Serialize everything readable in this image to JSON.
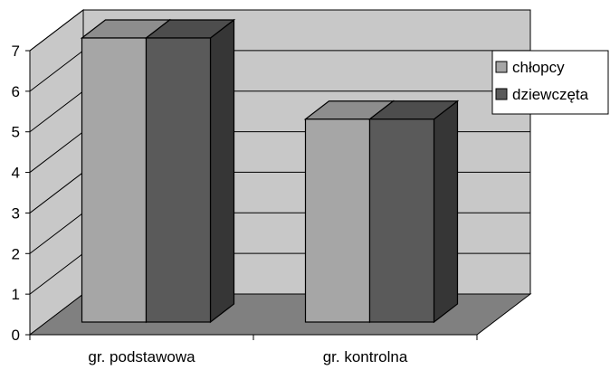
{
  "chart_data": {
    "type": "bar",
    "style": "3d-clustered",
    "categories": [
      "gr. podstawowa",
      "gr. kontrolna"
    ],
    "series": [
      {
        "name": "chłopcy",
        "values": [
          7,
          5
        ],
        "color": "#a6a6a6"
      },
      {
        "name": "dziewczęta",
        "values": [
          7,
          5
        ],
        "color": "#5a5a5a"
      }
    ],
    "ylim": [
      0,
      7
    ],
    "yticks": [
      0,
      1,
      2,
      3,
      4,
      5,
      6,
      7
    ],
    "grid": true,
    "legend_position": "right",
    "colors": {
      "wall": "#c8c8c8",
      "floor": "#808080",
      "gridline": "#000000"
    }
  }
}
